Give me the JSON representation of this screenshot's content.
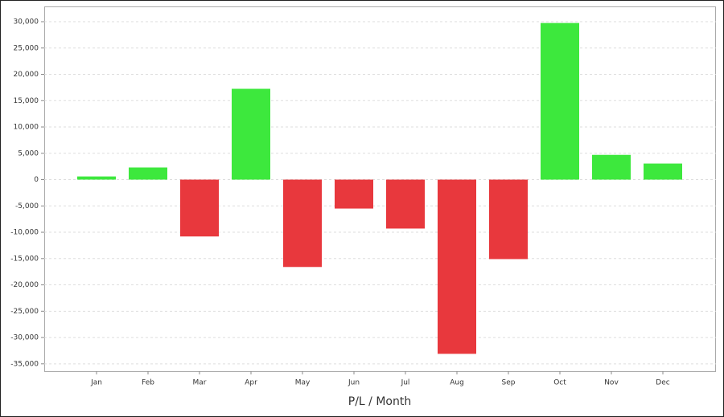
{
  "chart_data": {
    "type": "bar",
    "x_label": "P/L / Month",
    "categories": [
      "Jan",
      "Feb",
      "Mar",
      "Apr",
      "May",
      "Jun",
      "Jul",
      "Aug",
      "Sep",
      "Oct",
      "Nov",
      "Dec"
    ],
    "values": [
      600,
      2300,
      -10800,
      17250,
      -16600,
      -5500,
      -9300,
      -33100,
      -15100,
      29750,
      4700,
      3050
    ],
    "positive_color": "#3de83d",
    "negative_color": "#e8383d",
    "ylim": [
      -36400,
      32900
    ],
    "yticks": [
      {
        "value": 30000,
        "label": "30,000"
      },
      {
        "value": 25000,
        "label": "25,000"
      },
      {
        "value": 20000,
        "label": "20,000"
      },
      {
        "value": 15000,
        "label": "15,000"
      },
      {
        "value": 10000,
        "label": "10,000"
      },
      {
        "value": 5000,
        "label": "5,000"
      },
      0,
      {
        "value": -5000,
        "label": "-5,000"
      },
      {
        "value": -10000,
        "label": "-10,000"
      },
      {
        "value": -15000,
        "label": "-15,000"
      },
      {
        "value": -20000,
        "label": "-20,000"
      },
      {
        "value": -25000,
        "label": "-25,000"
      },
      {
        "value": -30000,
        "label": "-30,000"
      },
      {
        "value": -35000,
        "label": "-35,000"
      }
    ],
    "grid": true
  }
}
